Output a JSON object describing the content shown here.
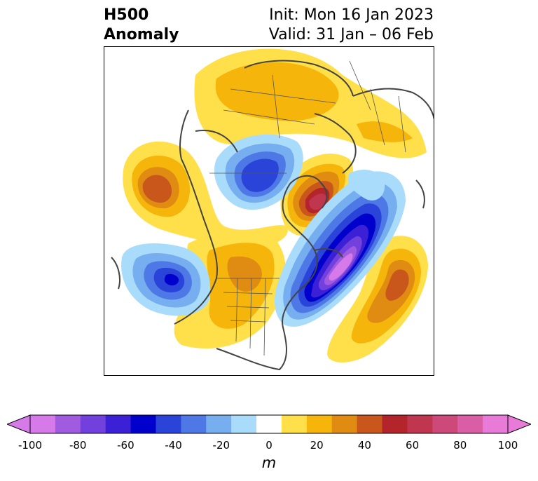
{
  "title": {
    "line1": "H500",
    "line2": "Anomaly",
    "init": "Init: Mon 16 Jan 2023",
    "valid": "Valid: 31 Jan – 06 Feb"
  },
  "colorbar": {
    "ticks": [
      "-100",
      "-80",
      "-60",
      "-40",
      "-20",
      "0",
      "20",
      "40",
      "60",
      "80",
      "100"
    ],
    "unit": "m",
    "levels": [
      -100,
      -90,
      -80,
      -70,
      -60,
      -50,
      -40,
      -30,
      -20,
      -10,
      10,
      20,
      30,
      40,
      50,
      60,
      70,
      80,
      90,
      100
    ],
    "colors": [
      "#d57ae8",
      "#a15be0",
      "#7240dc",
      "#3b20d6",
      "#0000cd",
      "#2a43d8",
      "#4d78e6",
      "#76aeef",
      "#a9dcfa",
      "#ffffff",
      "#ffe04a",
      "#f5b50b",
      "#e08c12",
      "#c9561a",
      "#b3252a",
      "#c0364f",
      "#cc4979",
      "#d95ea6",
      "#e87bd8"
    ],
    "extend_min_color": "#d57ae8",
    "extend_max_color": "#e87bd8"
  }
}
